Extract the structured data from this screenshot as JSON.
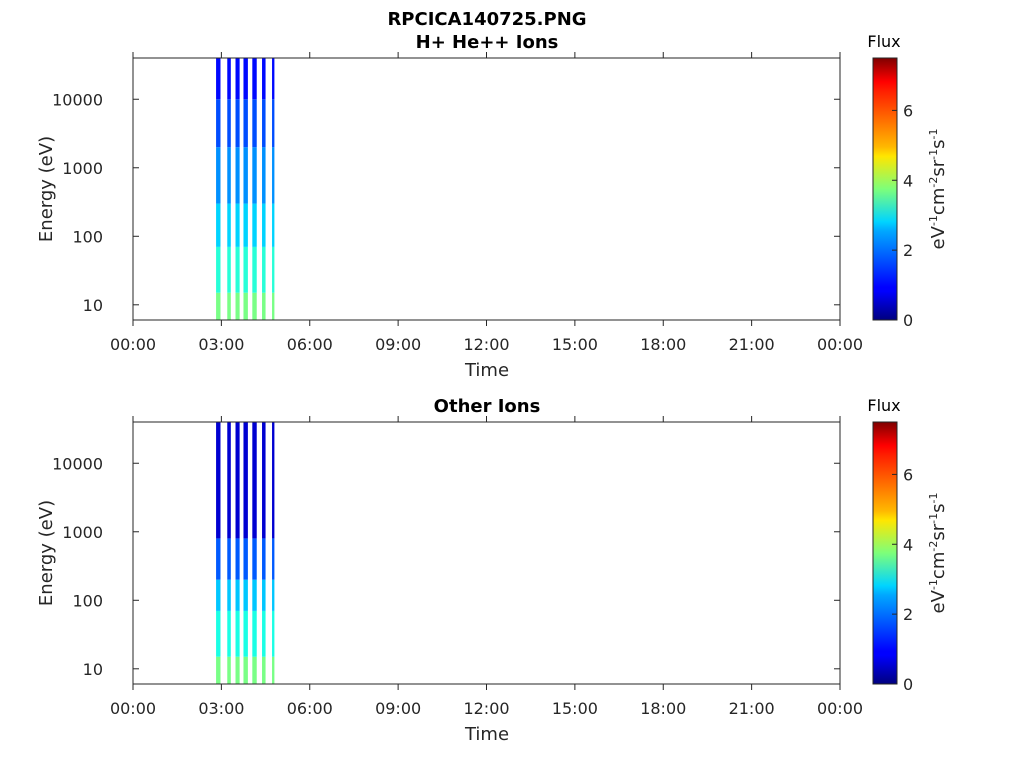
{
  "figure": {
    "title_line1": "RPCICA140725.PNG"
  },
  "chart_data": [
    {
      "type": "heatmap",
      "title": "H+ He++ Ions",
      "xlabel": "Time",
      "ylabel": "Energy (eV)",
      "x_ticks": [
        "00:00",
        "03:00",
        "06:00",
        "09:00",
        "12:00",
        "15:00",
        "18:00",
        "21:00",
        "00:00"
      ],
      "x_range_hours": [
        0,
        24
      ],
      "y_scale": "log",
      "y_ticks": [
        10,
        100,
        1000,
        10000
      ],
      "y_tick_labels": [
        "10",
        "100",
        "1000",
        "10000"
      ],
      "y_range": [
        6,
        40000
      ],
      "colorbar": {
        "label_top": "Flux",
        "label_units": "eV-1cm-2sr-1s-1",
        "ticks": [
          "0",
          "2",
          "4",
          "6"
        ],
        "range": [
          0,
          7.5
        ],
        "colormap": "jet"
      },
      "data_intervals_hours": [
        [
          2.82,
          2.97
        ],
        [
          3.2,
          3.32
        ],
        [
          3.48,
          3.62
        ],
        [
          3.75,
          3.9
        ],
        [
          4.05,
          4.2
        ],
        [
          4.38,
          4.5
        ],
        [
          4.72,
          4.8
        ]
      ],
      "flux_by_energy_band": [
        {
          "e_low": 6,
          "e_high": 15,
          "flux": 3.7
        },
        {
          "e_low": 15,
          "e_high": 70,
          "flux": 3.1
        },
        {
          "e_low": 70,
          "e_high": 300,
          "flux": 2.5
        },
        {
          "e_low": 300,
          "e_high": 2000,
          "flux": 2.0
        },
        {
          "e_low": 2000,
          "e_high": 10000,
          "flux": 1.5
        },
        {
          "e_low": 10000,
          "e_high": 40000,
          "flux": 1.0
        }
      ]
    },
    {
      "type": "heatmap",
      "title": "Other Ions",
      "xlabel": "Time",
      "ylabel": "Energy (eV)",
      "x_ticks": [
        "00:00",
        "03:00",
        "06:00",
        "09:00",
        "12:00",
        "15:00",
        "18:00",
        "21:00",
        "00:00"
      ],
      "x_range_hours": [
        0,
        24
      ],
      "y_scale": "log",
      "y_ticks": [
        10,
        100,
        1000,
        10000
      ],
      "y_tick_labels": [
        "10",
        "100",
        "1000",
        "10000"
      ],
      "y_range": [
        6,
        40000
      ],
      "colorbar": {
        "label_top": "Flux",
        "label_units": "eV-1cm-2sr-1s-1",
        "ticks": [
          "0",
          "2",
          "4",
          "6"
        ],
        "range": [
          0,
          7.5
        ],
        "colormap": "jet"
      },
      "data_intervals_hours": [
        [
          2.82,
          2.97
        ],
        [
          3.2,
          3.32
        ],
        [
          3.48,
          3.62
        ],
        [
          3.75,
          3.9
        ],
        [
          4.05,
          4.2
        ],
        [
          4.38,
          4.5
        ],
        [
          4.72,
          4.8
        ]
      ],
      "flux_by_energy_band": [
        {
          "e_low": 6,
          "e_high": 15,
          "flux": 3.7
        },
        {
          "e_low": 15,
          "e_high": 70,
          "flux": 3.0
        },
        {
          "e_low": 70,
          "e_high": 200,
          "flux": 2.4
        },
        {
          "e_low": 200,
          "e_high": 800,
          "flux": 1.6
        },
        {
          "e_low": 800,
          "e_high": 40000,
          "flux": 0.6
        }
      ]
    }
  ]
}
